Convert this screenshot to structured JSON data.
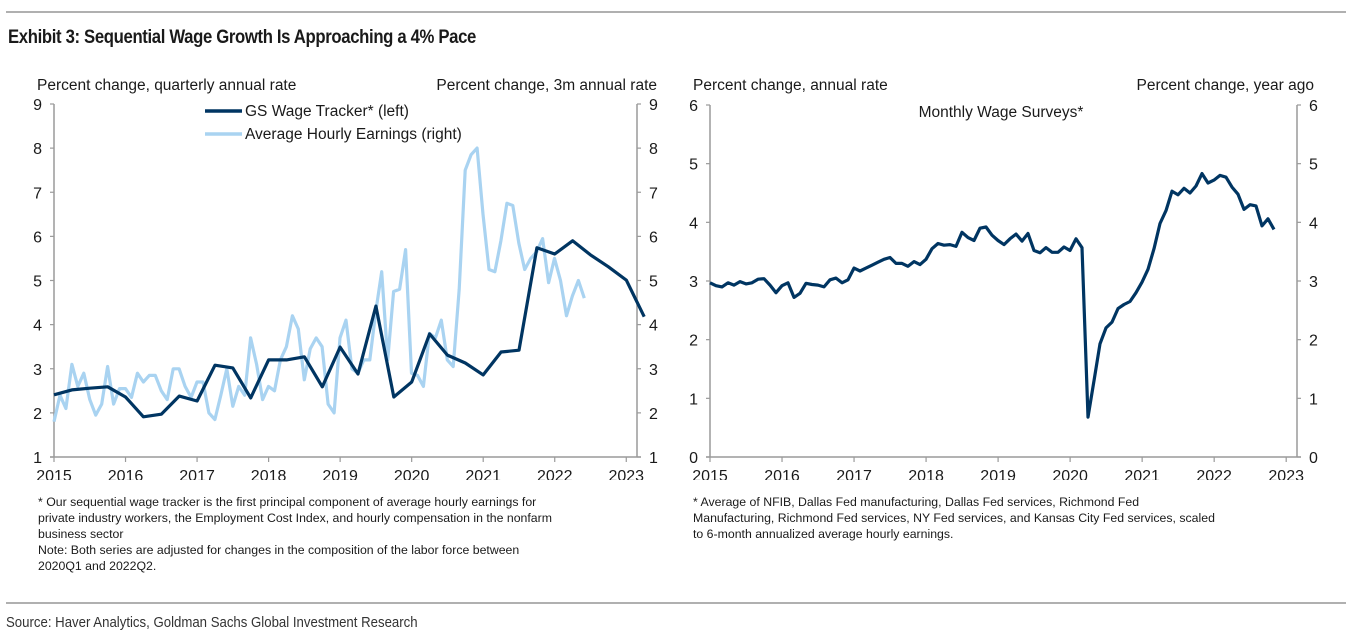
{
  "title": "Exhibit 3: Sequential Wage Growth Is Approaching a 4% Pace",
  "source": "Source: Haver Analytics, Goldman Sachs Global Investment Research",
  "colors": {
    "dark": "#003562",
    "light": "#a9d3f1",
    "axis": "#9a9a9a"
  },
  "chart_data": [
    {
      "type": "line",
      "left_label": "Percent change, quarterly annual rate",
      "right_label": "Percent change, 3m annual rate",
      "ylim_left": [
        1,
        9
      ],
      "ylim_right": [
        1,
        9
      ],
      "yticks": [
        "1",
        "2",
        "3",
        "4",
        "5",
        "6",
        "7",
        "8",
        "9"
      ],
      "xticks": [
        "2015",
        "2016",
        "2017",
        "2018",
        "2019",
        "2020",
        "2021",
        "2022",
        "2023"
      ],
      "xlim": [
        2015,
        2023.15
      ],
      "legend": [
        "GS Wage Tracker* (left)",
        "Average Hourly Earnings (right)"
      ],
      "legend_position": "top-center",
      "footnote": [
        "* Our sequential wage tracker is the first principal component of average hourly earnings for",
        "private industry workers, the Employment Cost Index, and hourly compensation in the nonfarm",
        "business sector",
        "Note: Both series are adjusted for changes in the composition of the labor force between",
        "2020Q1 and 2022Q2."
      ],
      "series": [
        {
          "name": "GS Wage Tracker* (left)",
          "axis": "left",
          "color": "dark",
          "x_start": 2015.0,
          "x_step": 0.25,
          "values": [
            2.41,
            2.52,
            2.56,
            2.59,
            2.36,
            1.91,
            1.97,
            2.38,
            2.27,
            3.08,
            3.02,
            2.34,
            3.2,
            3.2,
            3.27,
            2.59,
            3.49,
            2.88,
            4.42,
            2.36,
            2.7,
            3.79,
            3.31,
            3.13,
            2.86,
            3.38,
            3.42,
            5.74,
            5.6,
            5.9,
            5.58,
            5.31,
            5.01,
            4.18
          ]
        },
        {
          "name": "Average Hourly Earnings (right)",
          "axis": "right",
          "color": "light",
          "x_start": 2015.0,
          "x_step": 0.0833,
          "values": [
            1.8,
            2.4,
            2.1,
            3.1,
            2.6,
            2.9,
            2.3,
            1.95,
            2.2,
            3.05,
            2.2,
            2.55,
            2.55,
            2.35,
            2.9,
            2.7,
            2.85,
            2.85,
            2.5,
            2.3,
            3.0,
            3.0,
            2.6,
            2.35,
            2.7,
            2.7,
            2.0,
            1.85,
            2.4,
            3.0,
            2.15,
            2.6,
            2.4,
            3.7,
            3.1,
            2.3,
            2.6,
            2.5,
            3.2,
            3.5,
            4.2,
            3.9,
            2.75,
            3.45,
            3.7,
            3.5,
            2.2,
            2.0,
            3.7,
            4.1,
            3.0,
            2.9,
            3.2,
            3.2,
            4.3,
            5.2,
            3.2,
            4.75,
            4.8,
            5.7,
            2.9,
            2.85,
            2.6,
            3.8,
            3.7,
            4.1,
            3.2,
            3.05,
            4.8,
            7.5,
            7.85,
            8.0,
            6.5,
            5.25,
            5.2,
            5.9,
            6.75,
            6.7,
            5.85,
            5.25,
            5.5,
            5.65,
            5.95,
            4.95,
            5.5,
            5.0,
            4.2,
            4.65,
            5.0,
            4.6
          ]
        }
      ]
    },
    {
      "type": "line",
      "left_label": "Percent change, annual rate",
      "right_label": "Percent change, year ago",
      "series_title": "Monthly Wage Surveys*",
      "ylim_left": [
        0,
        6
      ],
      "ylim_right": [
        0,
        6
      ],
      "yticks": [
        "0",
        "1",
        "2",
        "3",
        "4",
        "5",
        "6"
      ],
      "xticks": [
        "2015",
        "2016",
        "2017",
        "2018",
        "2019",
        "2020",
        "2021",
        "2022",
        "2023"
      ],
      "xlim": [
        2015,
        2023.15
      ],
      "footnote": [
        "* Average of NFIB, Dallas Fed manufacturing, Dallas Fed services, Richmond Fed",
        "Manufacturing, Richmond Fed services, NY Fed services, and Kansas City Fed services, scaled",
        "to 6-month annualized average hourly earnings."
      ],
      "series": [
        {
          "name": "Monthly Wage Surveys*",
          "axis": "left",
          "color": "dark",
          "x_start": 2015.0,
          "x_step": 0.0833,
          "values": [
            2.97,
            2.92,
            2.9,
            2.97,
            2.93,
            2.99,
            2.95,
            2.97,
            3.03,
            3.04,
            2.93,
            2.8,
            2.92,
            2.97,
            2.72,
            2.79,
            2.96,
            2.94,
            2.93,
            2.9,
            3.02,
            3.05,
            2.97,
            3.02,
            3.22,
            3.17,
            3.22,
            3.27,
            3.32,
            3.37,
            3.4,
            3.3,
            3.3,
            3.25,
            3.33,
            3.28,
            3.37,
            3.55,
            3.64,
            3.61,
            3.62,
            3.59,
            3.83,
            3.74,
            3.69,
            3.9,
            3.92,
            3.78,
            3.69,
            3.62,
            3.72,
            3.8,
            3.68,
            3.81,
            3.52,
            3.48,
            3.57,
            3.49,
            3.49,
            3.58,
            3.52,
            3.72,
            3.57,
            0.68,
            1.3,
            1.93,
            2.2,
            2.3,
            2.53,
            2.6,
            2.65,
            2.8,
            2.98,
            3.2,
            3.55,
            3.98,
            4.2,
            4.53,
            4.47,
            4.58,
            4.5,
            4.62,
            4.83,
            4.67,
            4.72,
            4.8,
            4.77,
            4.6,
            4.48,
            4.22,
            4.3,
            4.28,
            3.94,
            4.06,
            3.88
          ]
        }
      ]
    }
  ]
}
